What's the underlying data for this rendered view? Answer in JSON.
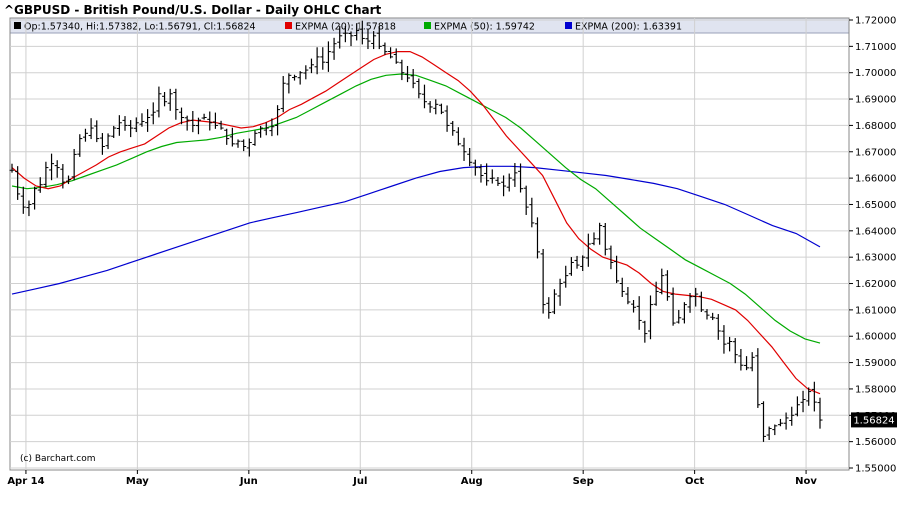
{
  "chart_data": {
    "type": "ohlc",
    "title": "^GBPUSD - British Pound/U.S. Dollar - Daily OHLC Chart",
    "legend": {
      "quote_text": "Op:1.57340, Hi:1.57382, Lo:1.56791, Cl:1.56824",
      "items": [
        {
          "label": "EXPMA (20): 1.57818",
          "color": "#e00000"
        },
        {
          "label": "EXPMA (50): 1.59742",
          "color": "#00aa00"
        },
        {
          "label": "EXPMA (200): 1.63391",
          "color": "#0000d0"
        }
      ]
    },
    "last_price_label": "1.56824",
    "credit": "(c) Barchart.com",
    "ylim": [
      1.55,
      1.72
    ],
    "y_ticks": [
      "1.72000",
      "1.71000",
      "1.70000",
      "1.69000",
      "1.68000",
      "1.67000",
      "1.66000",
      "1.65000",
      "1.64000",
      "1.63000",
      "1.62000",
      "1.61000",
      "1.60000",
      "1.59000",
      "1.58000",
      "1.57000",
      "1.56000",
      "1.55000"
    ],
    "x_ticks": [
      "Apr 14",
      "May",
      "Jun",
      "Jul",
      "Aug",
      "Sep",
      "Oct",
      "Nov"
    ],
    "x_tick_bar_index": [
      4,
      36,
      68,
      100,
      132,
      164,
      196,
      228
    ],
    "colors": {
      "ohlc": "#000000",
      "ema20": "#e00000",
      "ema50": "#00aa00",
      "ema200": "#0000d0",
      "header_bg": "#e0e4f0",
      "grid": "#d0d0d0"
    },
    "ohlc_close": [
      1.663,
      1.654,
      1.649,
      1.65,
      1.656,
      1.6575,
      1.664,
      1.6655,
      1.664,
      1.6585,
      1.6595,
      1.669,
      1.675,
      1.677,
      1.679,
      1.675,
      1.672,
      1.676,
      1.679,
      1.681,
      1.68,
      1.679,
      1.681,
      1.6815,
      1.683,
      1.685,
      1.692,
      1.689,
      1.692,
      1.686,
      1.683,
      1.682,
      1.68,
      1.682,
      1.683,
      1.681,
      1.68,
      1.679,
      1.675,
      1.673,
      1.674,
      1.672,
      1.6735,
      1.677,
      1.679,
      1.679,
      1.6795,
      1.686,
      1.696,
      1.699,
      1.6985,
      1.7,
      1.701,
      1.703,
      1.706,
      1.704,
      1.708,
      1.711,
      1.714,
      1.715,
      1.714,
      1.716,
      1.713,
      1.712,
      1.714,
      1.71,
      1.708,
      1.706,
      1.704,
      1.7,
      1.698,
      1.696,
      1.692,
      1.689,
      1.687,
      1.688,
      1.685,
      1.68,
      1.678,
      1.673,
      1.67,
      1.666,
      1.664,
      1.661,
      1.659,
      1.66,
      1.658,
      1.657,
      1.66,
      1.662,
      1.656,
      1.649,
      1.643,
      1.632,
      1.612,
      1.609,
      1.616,
      1.62,
      1.623,
      1.628,
      1.627,
      1.63,
      1.635,
      1.637,
      1.642,
      1.633,
      1.628,
      1.621,
      1.617,
      1.613,
      1.611,
      1.606,
      1.601,
      1.612,
      1.617,
      1.623,
      1.615,
      1.605,
      1.607,
      1.612,
      1.615,
      1.616,
      1.61,
      1.608,
      1.607,
      1.602,
      1.597,
      1.598,
      1.593,
      1.589,
      1.588,
      1.592,
      1.574,
      1.562,
      1.565,
      1.566,
      1.567,
      1.569,
      1.57,
      1.574,
      1.576,
      1.579,
      1.575,
      1.5682
    ],
    "ema20": [
      1.664,
      1.66,
      1.657,
      1.656,
      1.657,
      1.66,
      1.6625,
      1.665,
      1.668,
      1.67,
      1.6715,
      1.673,
      1.676,
      1.679,
      1.681,
      1.682,
      1.6815,
      1.681,
      1.68,
      1.679,
      1.6795,
      1.681,
      1.683,
      1.686,
      1.688,
      1.6905,
      1.693,
      1.696,
      1.699,
      1.702,
      1.705,
      1.707,
      1.708,
      1.708,
      1.706,
      1.703,
      1.7,
      1.697,
      1.693,
      1.688,
      1.682,
      1.676,
      1.671,
      1.666,
      1.661,
      1.652,
      1.643,
      1.637,
      1.633,
      1.63,
      1.6285,
      1.627,
      1.624,
      1.62,
      1.617,
      1.616,
      1.6155,
      1.615,
      1.614,
      1.612,
      1.61,
      1.606,
      1.601,
      1.596,
      1.59,
      1.584,
      1.58,
      1.5782
    ],
    "ema50": [
      1.657,
      1.656,
      1.6565,
      1.6575,
      1.659,
      1.661,
      1.663,
      1.665,
      1.6675,
      1.67,
      1.672,
      1.6735,
      1.674,
      1.6745,
      1.6755,
      1.677,
      1.678,
      1.679,
      1.681,
      1.683,
      1.686,
      1.689,
      1.692,
      1.695,
      1.6975,
      1.699,
      1.6995,
      1.699,
      1.697,
      1.695,
      1.692,
      1.689,
      1.686,
      1.683,
      1.679,
      1.674,
      1.669,
      1.664,
      1.6595,
      1.656,
      1.651,
      1.646,
      1.641,
      1.637,
      1.633,
      1.629,
      1.626,
      1.623,
      1.62,
      1.616,
      1.611,
      1.606,
      1.602,
      1.599,
      1.5974
    ],
    "ema200": [
      1.616,
      1.618,
      1.62,
      1.6225,
      1.625,
      1.628,
      1.631,
      1.634,
      1.637,
      1.64,
      1.643,
      1.645,
      1.647,
      1.649,
      1.651,
      1.654,
      1.657,
      1.66,
      1.6625,
      1.664,
      1.6645,
      1.6645,
      1.664,
      1.663,
      1.662,
      1.661,
      1.6595,
      1.658,
      1.656,
      1.653,
      1.65,
      1.646,
      1.642,
      1.639,
      1.6339
    ]
  }
}
